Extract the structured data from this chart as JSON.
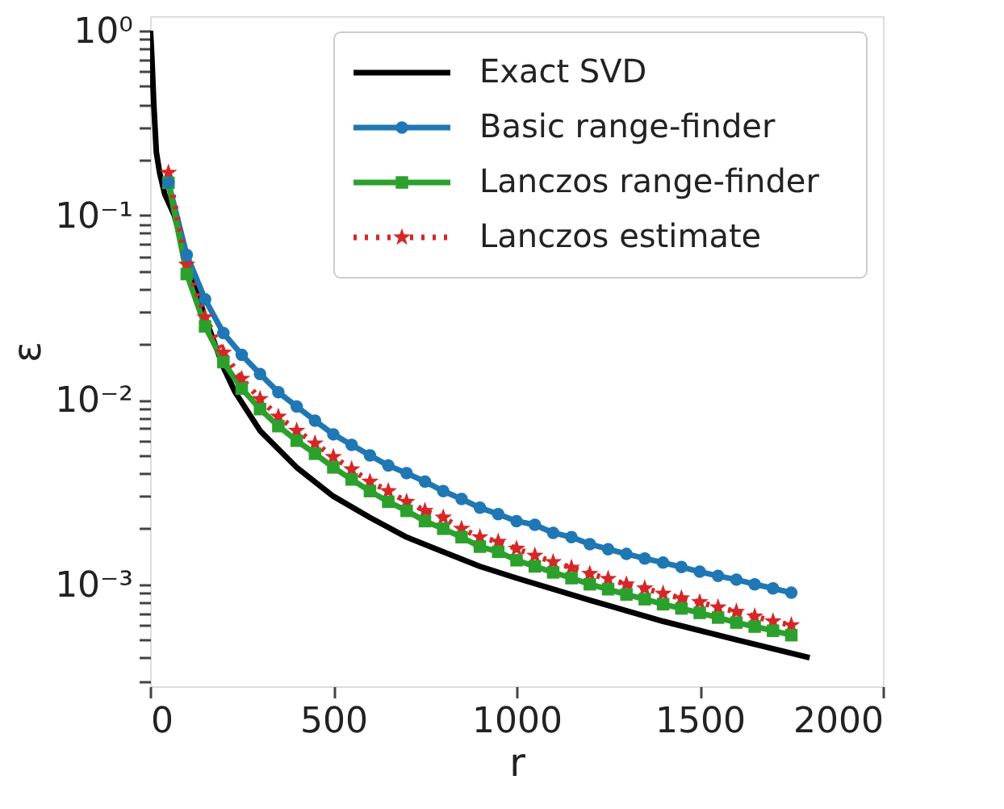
{
  "chart_data": {
    "type": "line",
    "xlabel": "r",
    "ylabel": "ε",
    "log": "y",
    "grid": false,
    "legend": "top right",
    "xlim": [
      0,
      2000
    ],
    "xticks": [
      0,
      500,
      1000,
      1500,
      2000
    ],
    "ylim": [
      0.00028,
      1.2
    ],
    "yticks": [
      {
        "value": 0.0003,
        "label": null
      },
      {
        "value": 0.0004,
        "label": null
      },
      {
        "value": 0.0005,
        "label": null
      },
      {
        "value": 0.0006,
        "label": null
      },
      {
        "value": 0.0007,
        "label": null
      },
      {
        "value": 0.0008,
        "label": null
      },
      {
        "value": 0.0009,
        "label": null
      },
      {
        "value": 0.001,
        "label": "10⁻³"
      },
      {
        "value": 0.002,
        "label": null
      },
      {
        "value": 0.003,
        "label": null
      },
      {
        "value": 0.004,
        "label": null
      },
      {
        "value": 0.005,
        "label": null
      },
      {
        "value": 0.006,
        "label": null
      },
      {
        "value": 0.007,
        "label": null
      },
      {
        "value": 0.008,
        "label": null
      },
      {
        "value": 0.009,
        "label": null
      },
      {
        "value": 0.01,
        "label": "10⁻²"
      },
      {
        "value": 0.02,
        "label": null
      },
      {
        "value": 0.03,
        "label": null
      },
      {
        "value": 0.04,
        "label": null
      },
      {
        "value": 0.05,
        "label": null
      },
      {
        "value": 0.06,
        "label": null
      },
      {
        "value": 0.07,
        "label": null
      },
      {
        "value": 0.08,
        "label": null
      },
      {
        "value": 0.09,
        "label": null
      },
      {
        "value": 0.1,
        "label": "10⁻¹"
      },
      {
        "value": 0.2,
        "label": null
      },
      {
        "value": 0.3,
        "label": null
      },
      {
        "value": 0.4,
        "label": null
      },
      {
        "value": 0.5,
        "label": null
      },
      {
        "value": 0.6,
        "label": null
      },
      {
        "value": 0.7,
        "label": null
      },
      {
        "value": 0.8,
        "label": null
      },
      {
        "value": 0.9,
        "label": null
      },
      {
        "value": 1,
        "label": "10⁰"
      }
    ],
    "series": [
      {
        "name": "Exact SVD",
        "color": "#000000",
        "marker": "none",
        "line_style": "solid",
        "x": [
          1,
          5,
          10,
          17,
          26,
          40,
          66,
          100,
          150,
          200,
          232,
          300,
          400,
          500,
          600,
          700,
          800,
          900,
          1000,
          1200,
          1400,
          1600,
          1800
        ],
        "values": [
          1.0,
          0.7,
          0.4,
          0.22,
          0.17,
          0.13,
          0.1,
          0.057,
          0.028,
          0.015,
          0.011,
          0.0068,
          0.0043,
          0.003,
          0.0023,
          0.0018,
          0.0015,
          0.00125,
          0.00108,
          0.00082,
          0.00063,
          0.0005,
          0.0004
        ]
      },
      {
        "name": "Basic range-finder",
        "color": "#1f77b4",
        "marker": "circle",
        "line_style": "solid",
        "x": [
          50,
          100,
          150,
          200,
          250,
          300,
          350,
          400,
          450,
          500,
          550,
          600,
          650,
          700,
          750,
          800,
          850,
          900,
          950,
          1000,
          1050,
          1100,
          1150,
          1200,
          1250,
          1300,
          1350,
          1400,
          1450,
          1500,
          1550,
          1600,
          1650,
          1700,
          1750
        ],
        "values": [
          0.15,
          0.061,
          0.035,
          0.023,
          0.0175,
          0.0138,
          0.011,
          0.0092,
          0.0077,
          0.0065,
          0.0057,
          0.005,
          0.0044,
          0.004,
          0.0036,
          0.0032,
          0.0029,
          0.0026,
          0.0024,
          0.0022,
          0.0021,
          0.0019,
          0.0018,
          0.00165,
          0.00155,
          0.00146,
          0.00138,
          0.00131,
          0.00124,
          0.00117,
          0.00111,
          0.00106,
          0.001,
          0.00095,
          0.0009
        ]
      },
      {
        "name": "Lanczos range-finder",
        "color": "#2ca02c",
        "marker": "square",
        "line_style": "solid",
        "x": [
          50,
          100,
          150,
          200,
          250,
          300,
          350,
          400,
          450,
          500,
          550,
          600,
          650,
          700,
          750,
          800,
          850,
          900,
          950,
          1000,
          1050,
          1100,
          1150,
          1200,
          1250,
          1300,
          1350,
          1400,
          1450,
          1500,
          1550,
          1600,
          1650,
          1700,
          1750
        ],
        "values": [
          0.15,
          0.048,
          0.025,
          0.016,
          0.0115,
          0.0089,
          0.0072,
          0.006,
          0.0051,
          0.0043,
          0.0037,
          0.0032,
          0.0028,
          0.0025,
          0.0022,
          0.002,
          0.0018,
          0.0016,
          0.0015,
          0.00135,
          0.00125,
          0.00116,
          0.00108,
          0.001,
          0.00094,
          0.00088,
          0.00083,
          0.00078,
          0.00074,
          0.0007,
          0.00066,
          0.00062,
          0.00059,
          0.00056,
          0.00053
        ]
      },
      {
        "name": "Lanczos estimate",
        "color": "#d62728",
        "marker": "star",
        "line_style": "dotted",
        "x": [
          50,
          100,
          150,
          200,
          250,
          300,
          350,
          400,
          450,
          500,
          550,
          600,
          650,
          700,
          750,
          800,
          850,
          900,
          950,
          1000,
          1050,
          1100,
          1150,
          1200,
          1250,
          1300,
          1350,
          1400,
          1450,
          1500,
          1550,
          1600,
          1650,
          1700,
          1750
        ],
        "values": [
          0.17,
          0.054,
          0.028,
          0.018,
          0.013,
          0.0101,
          0.0081,
          0.0068,
          0.0058,
          0.0049,
          0.0042,
          0.0036,
          0.0032,
          0.0028,
          0.0025,
          0.0023,
          0.002,
          0.0018,
          0.0017,
          0.00156,
          0.00143,
          0.00132,
          0.00123,
          0.00114,
          0.00107,
          0.001,
          0.00095,
          0.00089,
          0.00084,
          0.0008,
          0.00075,
          0.00071,
          0.00067,
          0.00063,
          0.0006
        ]
      }
    ]
  }
}
